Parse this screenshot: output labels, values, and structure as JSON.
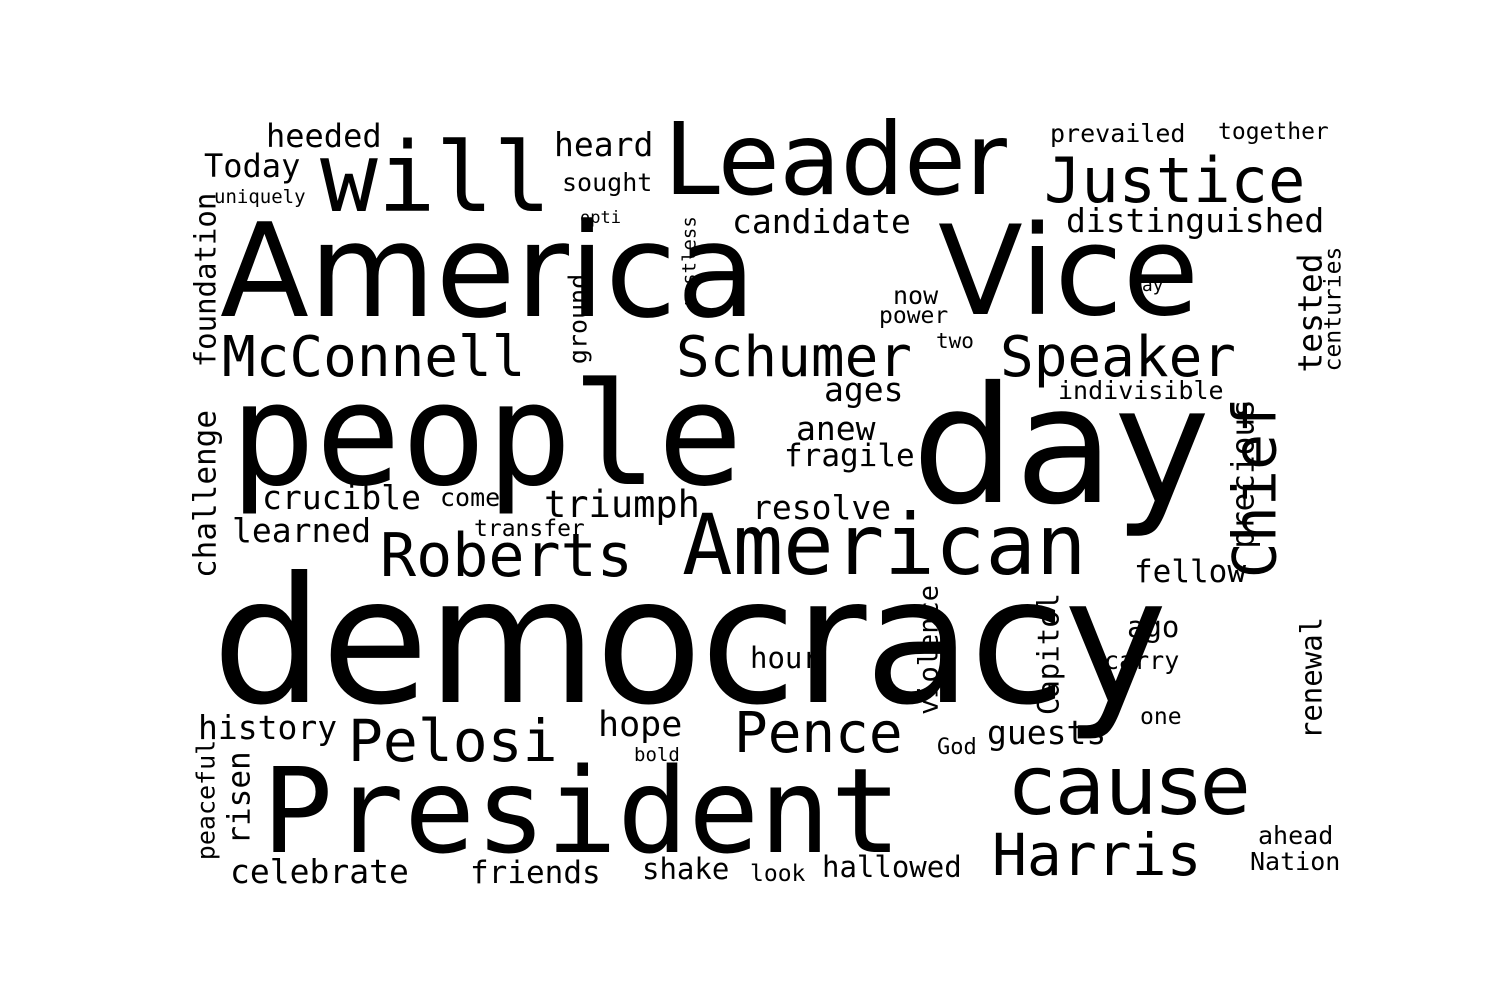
{
  "background_color": "#ffffff",
  "text_color": "#000000",
  "words": [
    {
      "id": "democracy",
      "text": "democracy"
    },
    {
      "id": "president",
      "text": "President"
    },
    {
      "id": "people",
      "text": "people"
    },
    {
      "id": "day",
      "text": "day"
    },
    {
      "id": "america",
      "text": "America"
    },
    {
      "id": "vice",
      "text": "Vice"
    },
    {
      "id": "leader",
      "text": "Leader"
    },
    {
      "id": "will",
      "text": "will"
    },
    {
      "id": "american",
      "text": "American"
    },
    {
      "id": "cause",
      "text": "cause"
    },
    {
      "id": "justice",
      "text": "Justice"
    },
    {
      "id": "chief",
      "text": "Chief"
    },
    {
      "id": "roberts",
      "text": "Roberts"
    },
    {
      "id": "schumer",
      "text": "Schumer"
    },
    {
      "id": "speaker",
      "text": "Speaker"
    },
    {
      "id": "mcconnell",
      "text": "McConnell"
    },
    {
      "id": "harris",
      "text": "Harris"
    },
    {
      "id": "pence",
      "text": "Pence"
    },
    {
      "id": "pelosi",
      "text": "Pelosi"
    },
    {
      "id": "distinguished",
      "text": "distinguished"
    },
    {
      "id": "heeded",
      "text": "heeded"
    },
    {
      "id": "today",
      "text": "Today"
    },
    {
      "id": "uniquely",
      "text": "uniquely"
    },
    {
      "id": "heard",
      "text": "heard"
    },
    {
      "id": "sought",
      "text": "sought"
    },
    {
      "id": "opti",
      "text": "opti"
    },
    {
      "id": "candidate",
      "text": "candidate"
    },
    {
      "id": "prevailed",
      "text": "prevailed"
    },
    {
      "id": "together",
      "text": "together"
    },
    {
      "id": "foundation",
      "text": "foundation"
    },
    {
      "id": "restless",
      "text": "restless"
    },
    {
      "id": "way",
      "text": "way"
    },
    {
      "id": "tested",
      "text": "tested"
    },
    {
      "id": "centuries",
      "text": "centuries"
    },
    {
      "id": "now",
      "text": "now"
    },
    {
      "id": "power",
      "text": "power"
    },
    {
      "id": "ground",
      "text": "ground"
    },
    {
      "id": "two",
      "text": "two"
    },
    {
      "id": "ages",
      "text": "ages"
    },
    {
      "id": "indivisible",
      "text": "indivisible"
    },
    {
      "id": "anew",
      "text": "anew"
    },
    {
      "id": "fragile",
      "text": "fragile"
    },
    {
      "id": "precious",
      "text": "precious"
    },
    {
      "id": "challenge",
      "text": "challenge"
    },
    {
      "id": "crucible",
      "text": "crucible"
    },
    {
      "id": "come",
      "text": "come"
    },
    {
      "id": "triumph",
      "text": "triumph"
    },
    {
      "id": "resolve",
      "text": "resolve"
    },
    {
      "id": "learned",
      "text": "learned"
    },
    {
      "id": "transfer",
      "text": "transfer"
    },
    {
      "id": "fellow",
      "text": "fellow"
    },
    {
      "id": "violence",
      "text": "violence"
    },
    {
      "id": "capitol",
      "text": "Capitol"
    },
    {
      "id": "ago",
      "text": "ago"
    },
    {
      "id": "renewal",
      "text": "renewal"
    },
    {
      "id": "hour",
      "text": "hour"
    },
    {
      "id": "carry",
      "text": "carry"
    },
    {
      "id": "one",
      "text": "one"
    },
    {
      "id": "history",
      "text": "history"
    },
    {
      "id": "hope",
      "text": "hope"
    },
    {
      "id": "bold",
      "text": "bold"
    },
    {
      "id": "guests",
      "text": "guests"
    },
    {
      "id": "god",
      "text": "God"
    },
    {
      "id": "peaceful",
      "text": "peaceful"
    },
    {
      "id": "risen",
      "text": "risen"
    },
    {
      "id": "ahead",
      "text": "ahead"
    },
    {
      "id": "nation",
      "text": "Nation"
    },
    {
      "id": "celebrate",
      "text": "celebrate"
    },
    {
      "id": "friends",
      "text": "friends"
    },
    {
      "id": "shake",
      "text": "shake"
    },
    {
      "id": "look",
      "text": "look"
    },
    {
      "id": "hallowed",
      "text": "hallowed"
    }
  ]
}
